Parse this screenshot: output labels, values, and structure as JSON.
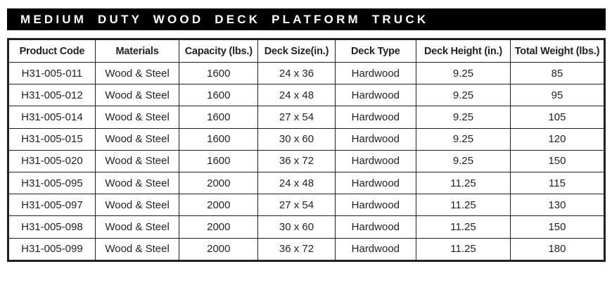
{
  "title": {
    "text": "MEDIUM DUTY WOOD DECK PLATFORM TRUCK"
  },
  "colors": {
    "title_bg": "#000000",
    "title_text": "#ffffff",
    "border": "#231f20",
    "cell_text": "#231f20"
  },
  "table": {
    "columns": [
      "Product Code",
      "Materials",
      "Capacity (lbs.)",
      "Deck Size(in.)",
      "Deck Type",
      "Deck Height (in.)",
      "Total Weight (lbs.)"
    ],
    "rows": [
      [
        "H31-005-011",
        "Wood & Steel",
        "1600",
        "24 x 36",
        "Hardwood",
        "9.25",
        "85"
      ],
      [
        "H31-005-012",
        "Wood & Steel",
        "1600",
        "24 x 48",
        "Hardwood",
        "9.25",
        "95"
      ],
      [
        "H31-005-014",
        "Wood & Steel",
        "1600",
        "27 x 54",
        "Hardwood",
        "9.25",
        "105"
      ],
      [
        "H31-005-015",
        "Wood & Steel",
        "1600",
        "30 x 60",
        "Hardwood",
        "9.25",
        "120"
      ],
      [
        "H31-005-020",
        "Wood & Steel",
        "1600",
        "36 x 72",
        "Hardwood",
        "9.25",
        "150"
      ],
      [
        "H31-005-095",
        "Wood & Steel",
        "2000",
        "24 x 48",
        "Hardwood",
        "11.25",
        "115"
      ],
      [
        "H31-005-097",
        "Wood & Steel",
        "2000",
        "27 x 54",
        "Hardwood",
        "11.25",
        "130"
      ],
      [
        "H31-005-098",
        "Wood & Steel",
        "2000",
        "30 x 60",
        "Hardwood",
        "11.25",
        "150"
      ],
      [
        "H31-005-099",
        "Wood & Steel",
        "2000",
        "36 x 72",
        "Hardwood",
        "11.25",
        "180"
      ]
    ]
  }
}
